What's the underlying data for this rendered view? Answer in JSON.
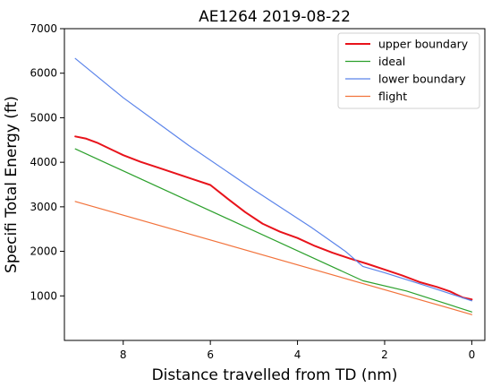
{
  "chart_data": {
    "type": "line",
    "title": "AE1264 2019-08-22",
    "xlabel": "Distance travelled from TD (nm)",
    "ylabel": "Specifi Total Energy (ft)",
    "xlim": [
      9.35,
      -0.3
    ],
    "ylim": [
      0,
      7000
    ],
    "x_ticks": [
      8,
      6,
      4,
      2,
      0
    ],
    "y_ticks": [
      1000,
      2000,
      3000,
      4000,
      5000,
      6000,
      7000
    ],
    "x_tick_labels": [
      "8",
      "6",
      "4",
      "2",
      "0"
    ],
    "y_tick_labels": [
      "1000",
      "2000",
      "3000",
      "4000",
      "5000",
      "6000",
      "7000"
    ],
    "grid": false,
    "legend_position": "top-right",
    "series": [
      {
        "name": "upper boundary",
        "color": "#e8131b",
        "points": [
          [
            9.1,
            4580
          ],
          [
            8.85,
            4530
          ],
          [
            8.6,
            4440
          ],
          [
            8.3,
            4300
          ],
          [
            8.0,
            4160
          ],
          [
            7.6,
            4010
          ],
          [
            7.2,
            3880
          ],
          [
            6.8,
            3750
          ],
          [
            6.4,
            3620
          ],
          [
            6.0,
            3490
          ],
          [
            5.6,
            3180
          ],
          [
            5.2,
            2880
          ],
          [
            4.8,
            2620
          ],
          [
            4.4,
            2440
          ],
          [
            4.0,
            2300
          ],
          [
            3.6,
            2120
          ],
          [
            3.2,
            1970
          ],
          [
            2.8,
            1840
          ],
          [
            2.4,
            1720
          ],
          [
            2.0,
            1590
          ],
          [
            1.6,
            1460
          ],
          [
            1.2,
            1310
          ],
          [
            0.8,
            1200
          ],
          [
            0.5,
            1100
          ],
          [
            0.2,
            960
          ],
          [
            0.0,
            920
          ]
        ]
      },
      {
        "name": "ideal",
        "color": "#2ca02c",
        "points": [
          [
            9.1,
            4300
          ],
          [
            2.5,
            1340
          ],
          [
            1.5,
            1110
          ],
          [
            0.0,
            640
          ]
        ]
      },
      {
        "name": "lower boundary",
        "color": "#5b84ea",
        "points": [
          [
            9.1,
            6330
          ],
          [
            8.0,
            5450
          ],
          [
            6.5,
            4380
          ],
          [
            5.0,
            3380
          ],
          [
            3.7,
            2550
          ],
          [
            2.9,
            2000
          ],
          [
            2.5,
            1660
          ],
          [
            2.0,
            1520
          ],
          [
            1.0,
            1210
          ],
          [
            0.0,
            890
          ]
        ]
      },
      {
        "name": "flight",
        "color": "#f2733c",
        "points": [
          [
            9.1,
            3120
          ],
          [
            0.0,
            580
          ]
        ]
      }
    ]
  }
}
